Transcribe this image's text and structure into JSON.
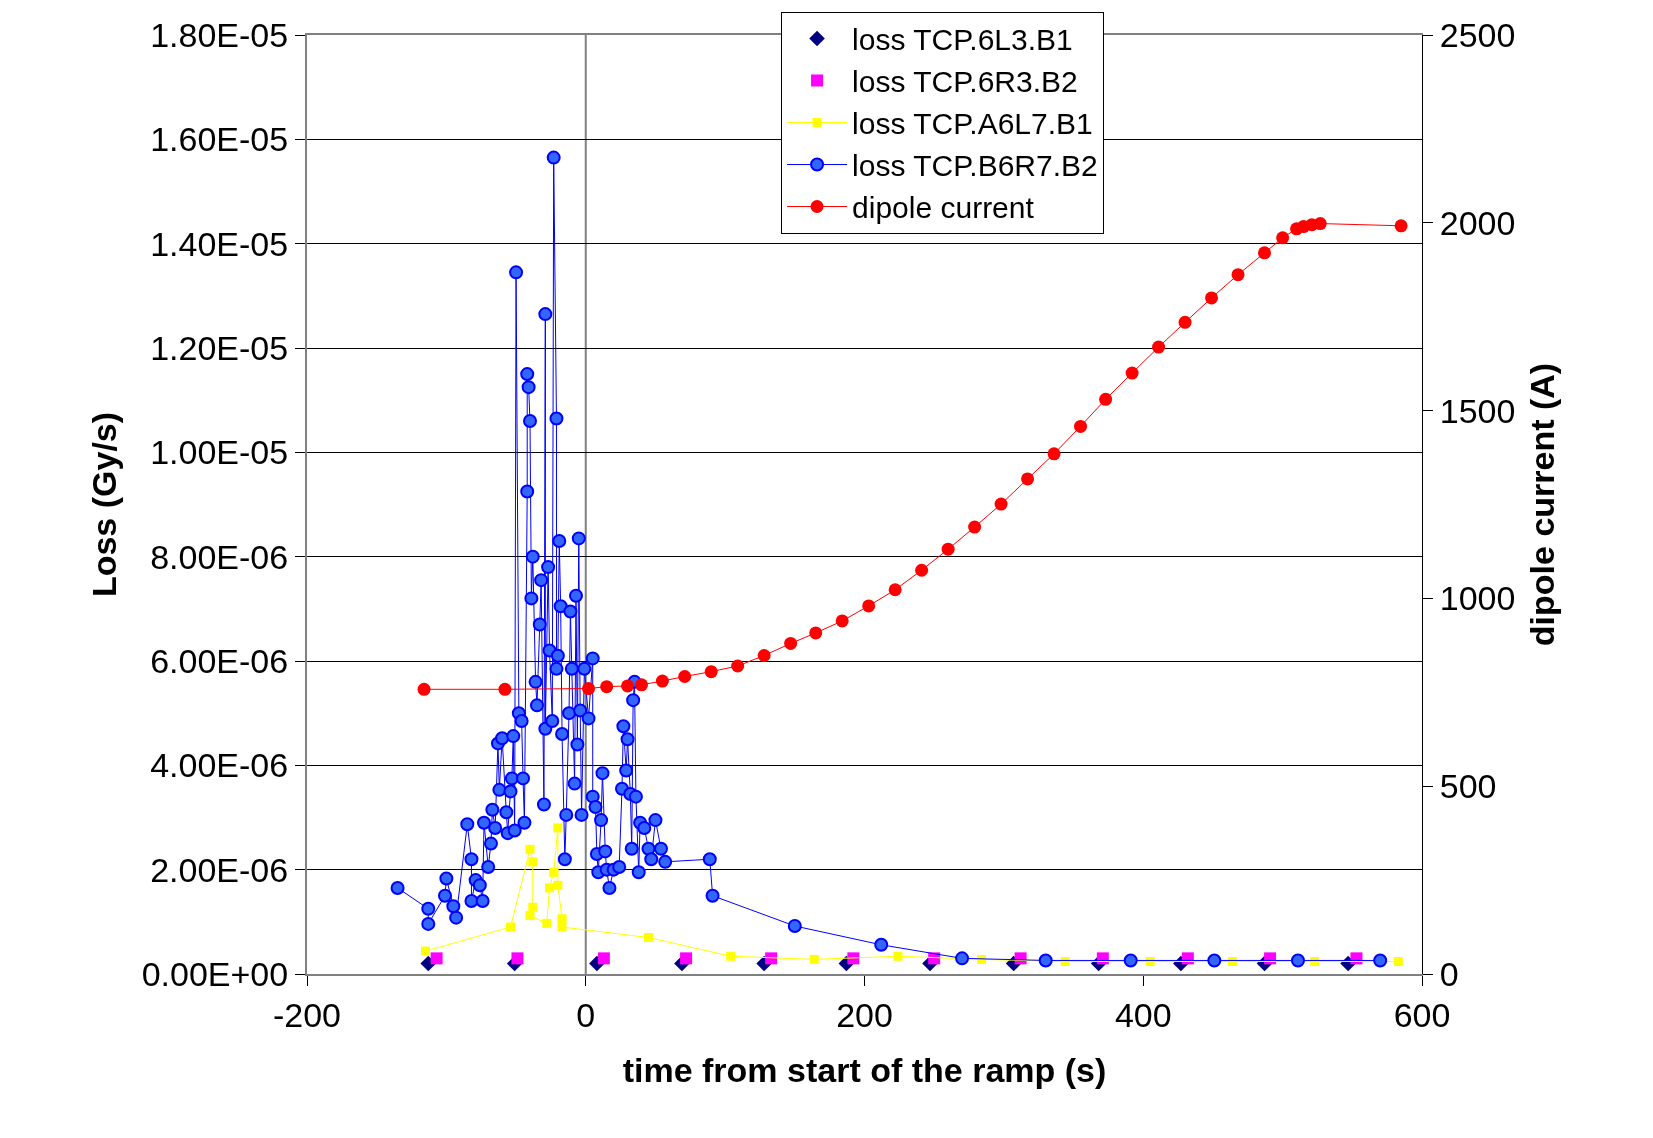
{
  "chart_data": {
    "type": "line",
    "xlabel": "time from start of the ramp (s)",
    "ylabel": "Loss (Gy/s)",
    "y2label": "dipole current (A)",
    "xlim": [
      -200,
      600
    ],
    "xticks": [
      -200,
      0,
      200,
      400,
      600
    ],
    "ylim": [
      0,
      1.8e-05
    ],
    "yticks": [
      {
        "value": 0,
        "label": "0.00E+00"
      },
      {
        "value": 2e-06,
        "label": "2.00E-06"
      },
      {
        "value": 4e-06,
        "label": "4.00E-06"
      },
      {
        "value": 6e-06,
        "label": "6.00E-06"
      },
      {
        "value": 8e-06,
        "label": "8.00E-06"
      },
      {
        "value": 1e-05,
        "label": "1.00E-05"
      },
      {
        "value": 1.2e-05,
        "label": "1.20E-05"
      },
      {
        "value": 1.4e-05,
        "label": "1.40E-05"
      },
      {
        "value": 1.6e-05,
        "label": "1.60E-05"
      },
      {
        "value": 1.8e-05,
        "label": "1.80E-05"
      }
    ],
    "y2lim": [
      0,
      2500
    ],
    "y2ticks": [
      0,
      500,
      1000,
      1500,
      2000,
      2500
    ],
    "grid": "y",
    "legend": "top",
    "ref_lines": [
      {
        "axis": "x",
        "value": 0,
        "label": null,
        "color": "#808080"
      }
    ],
    "series": [
      {
        "name": "loss TCP.6L3.B1",
        "type": "scatter",
        "marker": "diamond",
        "color": "#000080",
        "x": [
          -113,
          -51,
          8,
          69,
          128,
          187,
          247,
          307,
          368,
          427,
          487,
          547
        ],
        "values": [
          2e-07,
          2e-07,
          2e-07,
          2e-07,
          2e-07,
          2e-07,
          2e-07,
          2e-07,
          2e-07,
          2e-07,
          2e-07,
          2e-07
        ]
      },
      {
        "name": "loss TCP.6R3.B2",
        "type": "scatter",
        "marker": "square",
        "color": "#ff00ff",
        "x": [
          -107,
          -49,
          13,
          72,
          133,
          192,
          250,
          312,
          371,
          432,
          491,
          553
        ],
        "values": [
          3e-07,
          3e-07,
          3e-07,
          3e-07,
          3e-07,
          3e-07,
          3e-07,
          3e-07,
          3e-07,
          3e-07,
          3e-07,
          3e-07
        ]
      },
      {
        "name": "loss TCP.A6L7.B1",
        "marker": "square",
        "line_style": "solid",
        "color": "#ffff00",
        "x": [
          -115,
          -54,
          -40,
          -38,
          -38,
          -40,
          -28,
          -26,
          -23,
          -20,
          -20,
          -17,
          -17,
          45,
          104,
          164,
          224,
          284,
          344,
          405,
          464,
          523,
          583
        ],
        "values": [
          4.4e-07,
          9e-07,
          2.39e-06,
          2.15e-06,
          1.28e-06,
          1.12e-06,
          9.7e-07,
          1.65e-06,
          1.95e-06,
          2.8e-06,
          1.7e-06,
          1.06e-06,
          9e-07,
          7e-07,
          3.4e-07,
          2.8e-07,
          3.4e-07,
          2.8e-07,
          2.4e-07,
          2.4e-07,
          2.4e-07,
          2.4e-07,
          2.4e-07
        ]
      },
      {
        "name": "loss TCP.B6R7.B2",
        "marker": "circle",
        "line_style": "solid",
        "color": "#3366ff",
        "x": [
          -135,
          -113,
          -113,
          -101,
          -100,
          -95,
          -93,
          -85,
          -82,
          -82,
          -79,
          -76,
          -74,
          -73,
          -70,
          -68,
          -67,
          -65,
          -63,
          -62,
          -60,
          -57,
          -56,
          -54,
          -53,
          -52,
          -51,
          -50,
          -48,
          -46,
          -45,
          -44,
          -42,
          -42,
          -41,
          -40,
          -39,
          -38,
          -36,
          -35,
          -33,
          -32,
          -30,
          -29,
          -29,
          -27,
          -26,
          -24,
          -23,
          -21,
          -21,
          -20,
          -19,
          -18,
          -17,
          -15,
          -14,
          -12,
          -11,
          -10,
          -8,
          -7,
          -6,
          -5,
          -4,
          -3,
          -1,
          2,
          5,
          5,
          7,
          8,
          9,
          11,
          12,
          14,
          15,
          17,
          20,
          24,
          26,
          27,
          29,
          30,
          32,
          33,
          34,
          35,
          36,
          38,
          39,
          42,
          45,
          47,
          50,
          54,
          57,
          89,
          91,
          150,
          212,
          270,
          330,
          391,
          451,
          511,
          570
        ],
        "values": [
          1.65e-06,
          1.25e-06,
          9.6e-07,
          1.5e-06,
          1.83e-06,
          1.3e-06,
          1.08e-06,
          2.87e-06,
          2.2e-06,
          1.4e-06,
          1.8e-06,
          1.7e-06,
          1.4e-06,
          2.9e-06,
          2.05e-06,
          2.5e-06,
          3.15e-06,
          2.8e-06,
          4.42e-06,
          3.53e-06,
          4.52e-06,
          3.1e-06,
          2.7e-06,
          3.5e-06,
          3.75e-06,
          4.56e-06,
          2.75e-06,
          1.345e-05,
          5e-06,
          4.85e-06,
          3.75e-06,
          2.9e-06,
          9.25e-06,
          1.15e-05,
          1.125e-05,
          1.06e-05,
          7.2e-06,
          8e-06,
          5.6e-06,
          5.15e-06,
          6.7e-06,
          7.55e-06,
          3.25e-06,
          1.265e-05,
          4.7e-06,
          7.8e-06,
          6.2e-06,
          4.85e-06,
          1.565e-05,
          1.065e-05,
          5.85e-06,
          6.1e-06,
          8.3e-06,
          7.05e-06,
          4.6e-06,
          2.2e-06,
          3.05e-06,
          5e-06,
          6.95e-06,
          5.85e-06,
          3.65e-06,
          7.25e-06,
          4.4e-06,
          8.35e-06,
          5.05e-06,
          3.05e-06,
          5.85e-06,
          4.9e-06,
          6.05e-06,
          3.4e-06,
          3.2e-06,
          2.3e-06,
          1.95e-06,
          2.95e-06,
          3.85e-06,
          2.35e-06,
          2e-06,
          1.65e-06,
          2e-06,
          2.05e-06,
          3.55e-06,
          4.75e-06,
          3.9e-06,
          4.5e-06,
          3.45e-06,
          2.4e-06,
          5.25e-06,
          5.6e-06,
          3.4e-06,
          1.95e-06,
          2.9e-06,
          2.8e-06,
          2.4e-06,
          2.2e-06,
          2.95e-06,
          2.4e-06,
          2.15e-06,
          2.2e-06,
          1.5e-06,
          9.2e-07,
          5.6e-07,
          3e-07,
          2.6e-07,
          2.6e-07,
          2.6e-07,
          2.6e-07,
          2.6e-07
        ]
      },
      {
        "name": "dipole current",
        "marker": "circle",
        "line_style": "solid",
        "color": "#ff0000",
        "axis": "y2",
        "x": [
          -116,
          -58,
          2,
          15,
          30,
          40,
          55,
          71,
          90,
          109,
          128,
          147,
          165,
          184,
          203,
          222,
          241,
          260,
          279,
          298,
          317,
          336,
          355,
          373,
          392,
          411,
          430,
          449,
          468,
          487,
          500,
          510,
          515,
          521,
          527,
          585
        ],
        "values": [
          758,
          758,
          760,
          765,
          767,
          770,
          780,
          792,
          805,
          820,
          848,
          880,
          908,
          940,
          980,
          1023,
          1075,
          1131,
          1190,
          1251,
          1318,
          1385,
          1458,
          1530,
          1600,
          1669,
          1735,
          1800,
          1862,
          1920,
          1960,
          1984,
          1990,
          1995,
          1998,
          1992
        ]
      }
    ]
  }
}
